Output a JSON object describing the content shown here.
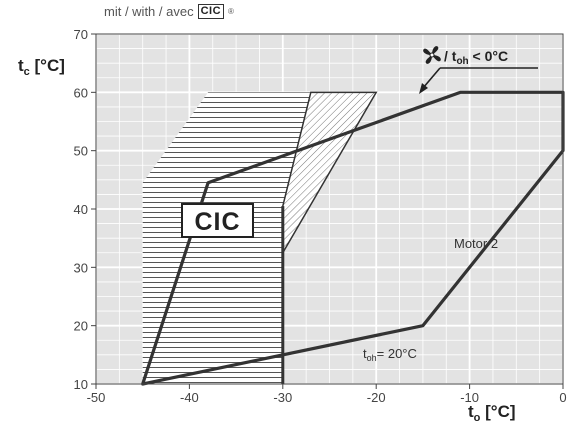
{
  "caption": {
    "text": "mit / with / avec",
    "badge": "CIC",
    "reg": "®"
  },
  "chart_data": {
    "type": "area",
    "xlim": [
      -50,
      0
    ],
    "ylim": [
      10,
      70
    ],
    "xticks": [
      -50,
      -40,
      -30,
      -20,
      -10,
      0
    ],
    "yticks": [
      10,
      20,
      30,
      40,
      50,
      60,
      70
    ],
    "grid": true,
    "x_axis_title": {
      "main": "t",
      "sub": "o",
      "unit": " [°C]"
    },
    "y_axis_title": {
      "main": "t",
      "sub": "c",
      "unit": " [°C]"
    },
    "envelope": {
      "x": [
        -45,
        -38,
        -11,
        0,
        0,
        -15,
        -45
      ],
      "y": [
        10,
        44.5,
        60,
        60,
        50,
        20,
        10
      ]
    },
    "cic_region": {
      "label": "CIC",
      "x": [
        -45,
        -45,
        -38,
        -27,
        -30,
        -30
      ],
      "y": [
        10,
        44.5,
        60,
        60,
        40.5,
        10
      ]
    },
    "fan_region": {
      "x": [
        -30,
        -27,
        -20,
        -30
      ],
      "y": [
        40.5,
        60,
        60,
        32.5
      ]
    },
    "annotations": {
      "motor": "Motor 2",
      "toh_main": "t",
      "toh_sub": "oh",
      "toh_value": "= 20°C",
      "fan_legend_prefix": "/ t",
      "fan_legend_sub": "oh",
      "fan_legend_suffix": "< 0°C"
    },
    "colors": {
      "background": "#e3e3e3",
      "grid": "#ffffff",
      "envelope_line": "#333333",
      "hatch": "#666666"
    }
  }
}
